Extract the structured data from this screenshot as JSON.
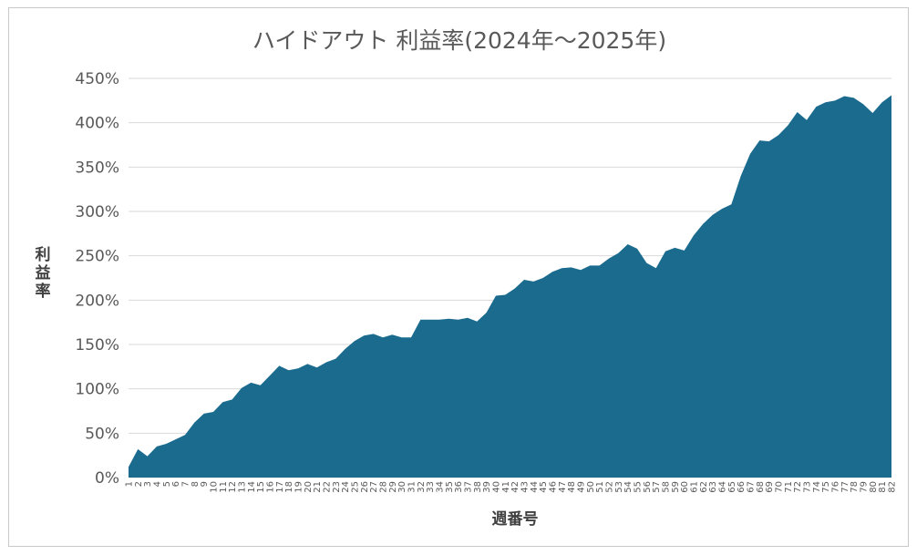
{
  "chart_data": {
    "type": "area",
    "title": "ハイドアウト 利益率(2024年～2025年)",
    "xlabel": "週番号",
    "ylabel": "利益率",
    "ylim": [
      0,
      450
    ],
    "y_ticks": [
      "0%",
      "50%",
      "100%",
      "150%",
      "200%",
      "250%",
      "300%",
      "350%",
      "400%",
      "450%"
    ],
    "x": [
      1,
      2,
      3,
      4,
      5,
      6,
      7,
      8,
      9,
      10,
      11,
      12,
      13,
      14,
      15,
      16,
      17,
      18,
      19,
      20,
      21,
      22,
      23,
      24,
      25,
      26,
      27,
      28,
      29,
      30,
      31,
      32,
      33,
      34,
      35,
      36,
      37,
      38,
      39,
      40,
      41,
      42,
      43,
      44,
      45,
      46,
      47,
      48,
      49,
      50,
      51,
      52,
      53,
      54,
      55,
      56,
      57,
      58,
      59,
      60,
      61,
      62,
      63,
      64,
      65,
      66,
      67,
      68,
      69,
      70,
      71,
      72,
      73,
      74,
      75,
      76,
      77,
      78,
      79,
      80,
      81,
      82
    ],
    "series": [
      {
        "color": "#1a6b8e",
        "values": [
          12,
          32,
          24,
          35,
          38,
          43,
          48,
          62,
          72,
          74,
          85,
          88,
          101,
          107,
          104,
          115,
          126,
          121,
          123,
          128,
          124,
          130,
          134,
          145,
          154,
          160,
          162,
          158,
          161,
          158,
          158,
          178,
          178,
          178,
          179,
          178,
          180,
          176,
          186,
          205,
          206,
          213,
          223,
          221,
          225,
          232,
          236,
          237,
          234,
          239,
          239,
          247,
          253,
          263,
          258,
          242,
          236,
          255,
          259,
          256,
          273,
          286,
          296,
          303,
          308,
          340,
          365,
          380,
          379,
          386,
          397,
          412,
          403,
          418,
          423,
          425,
          430,
          428,
          421,
          411,
          423,
          431
        ]
      }
    ],
    "grid": true,
    "legend": "none"
  }
}
